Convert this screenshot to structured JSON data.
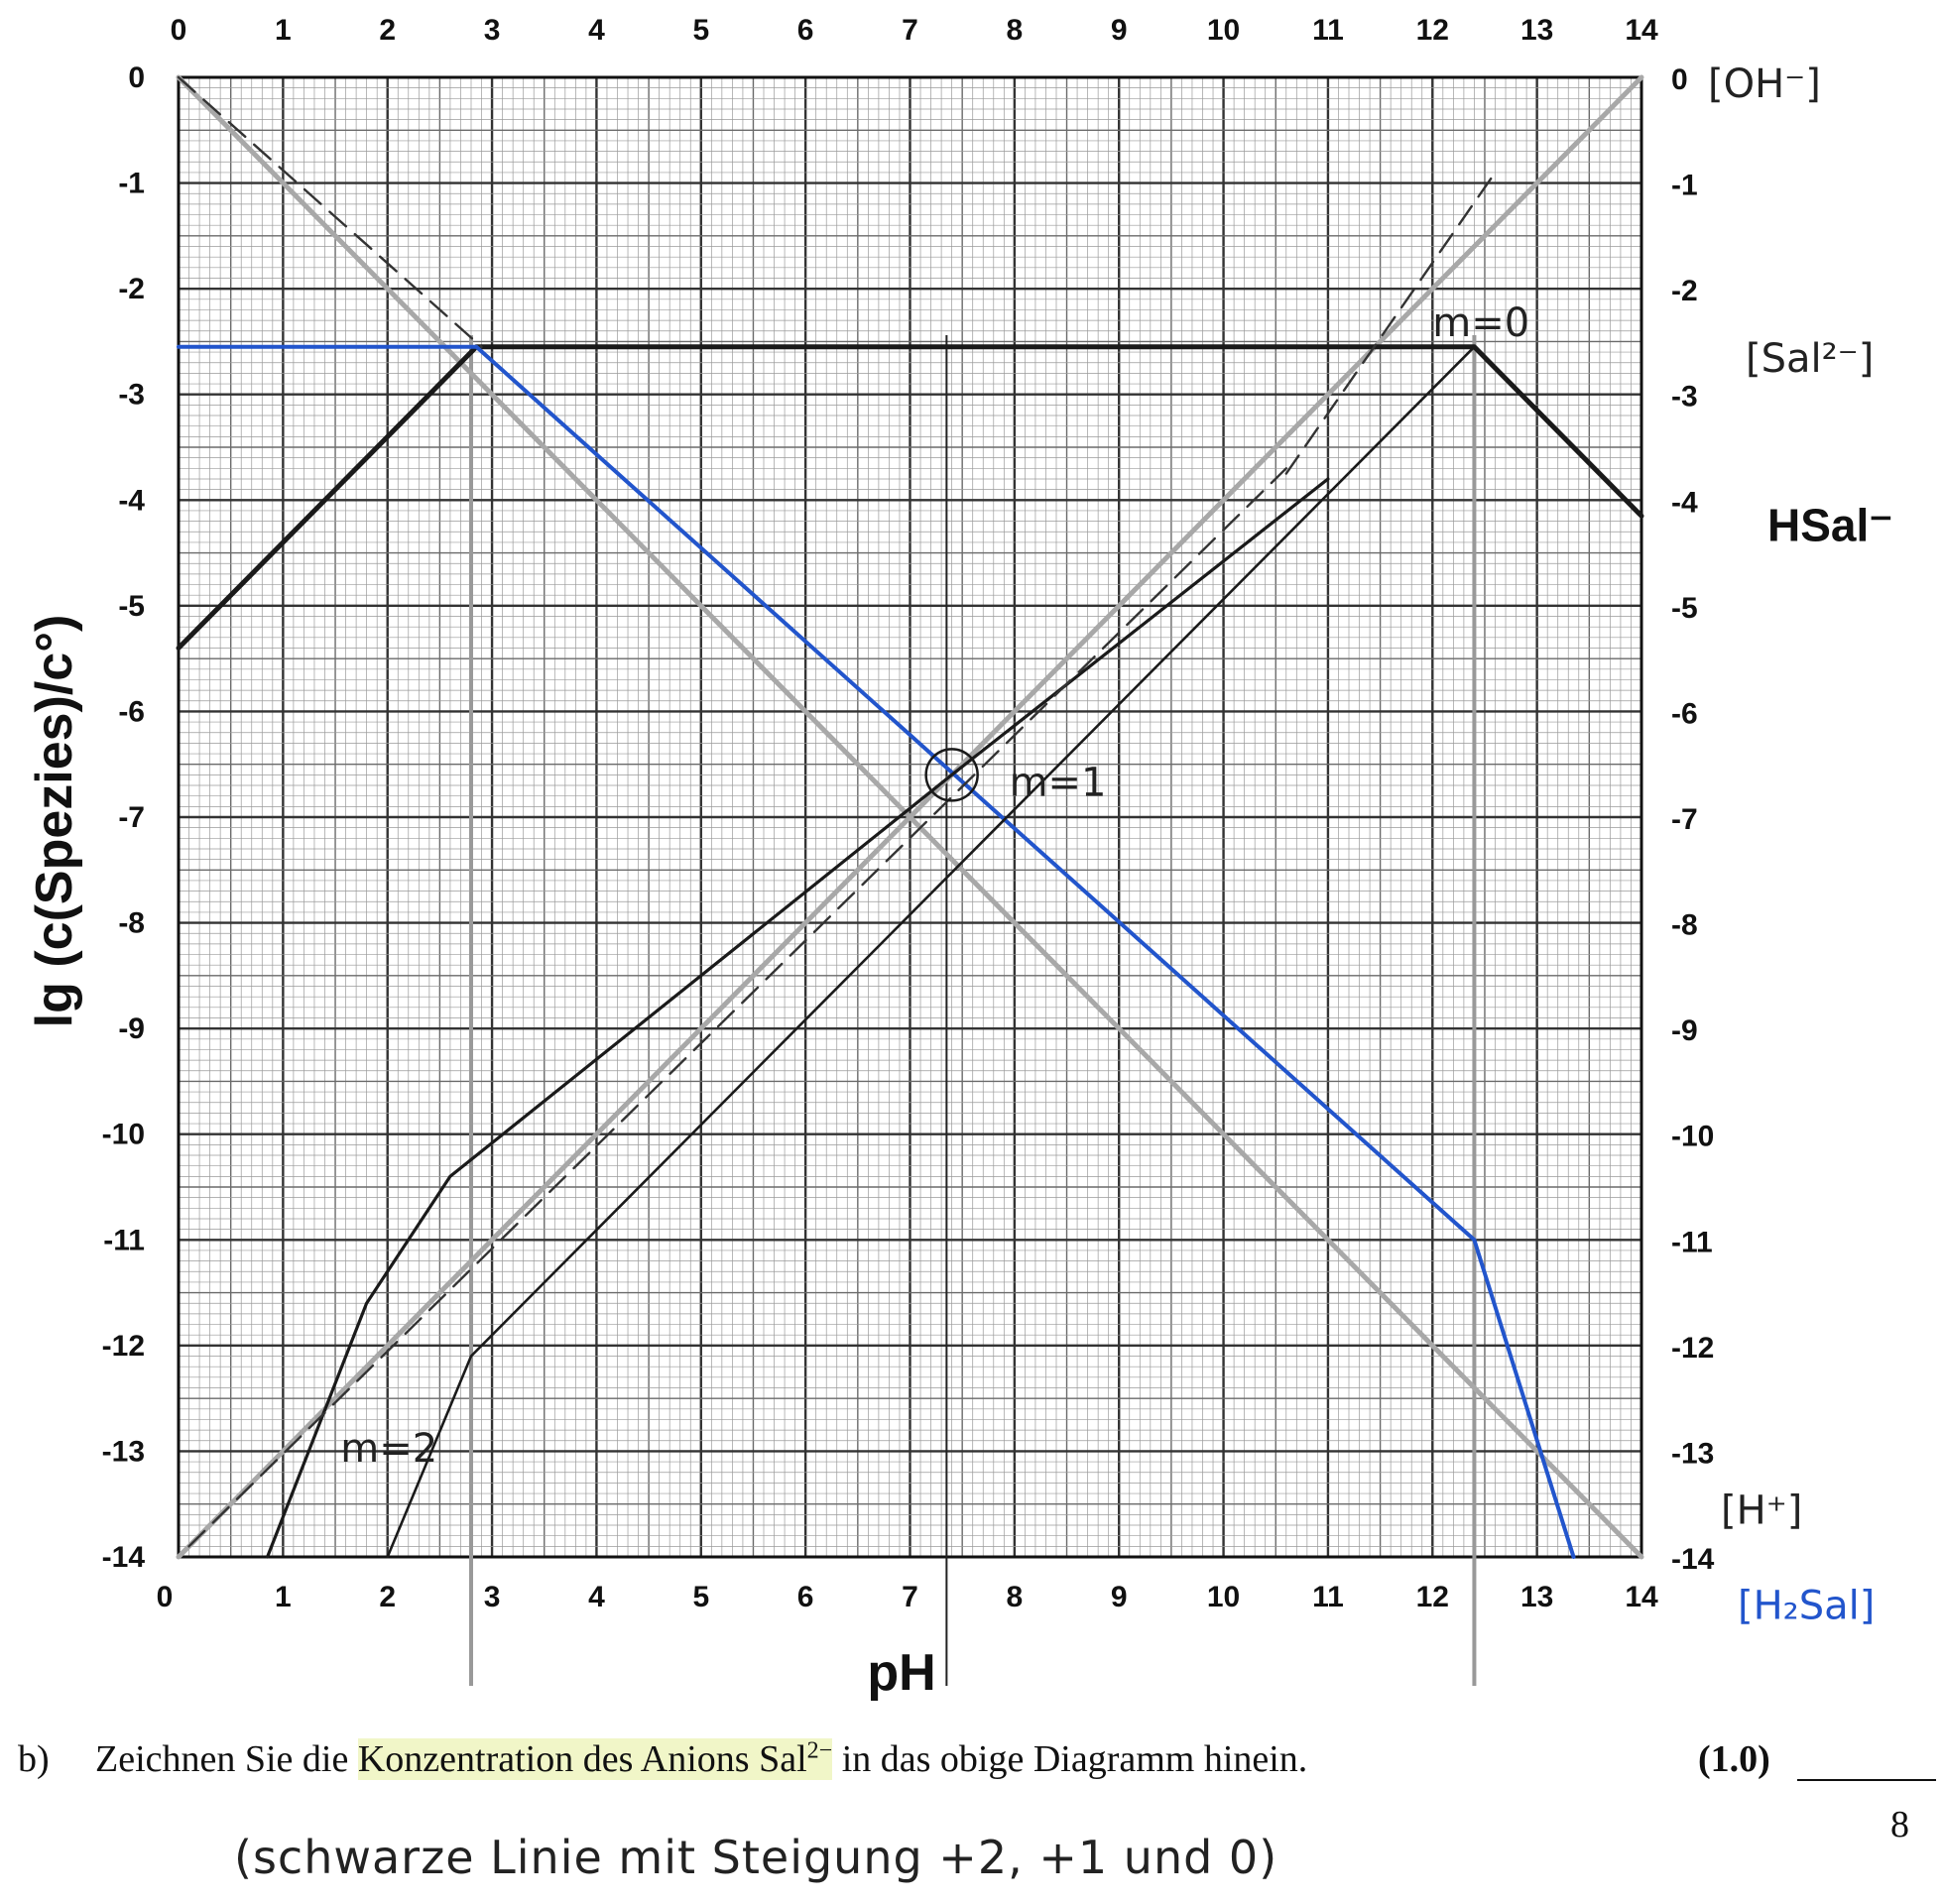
{
  "chart_data": {
    "type": "line",
    "xlabel": "pH",
    "ylabel": "lg (c(Spezies)/c°)",
    "xlim": [
      0,
      14
    ],
    "ylim": [
      -14,
      0
    ],
    "x_ticks": [
      "0",
      "1",
      "2",
      "3",
      "4",
      "5",
      "6",
      "7",
      "8",
      "9",
      "10",
      "11",
      "12",
      "13",
      "14"
    ],
    "y_ticks": [
      "0",
      "-1",
      "-2",
      "-3",
      "-4",
      "-5",
      "-6",
      "-7",
      "-8",
      "-9",
      "-10",
      "-11",
      "-12",
      "-13",
      "-14"
    ],
    "grid": true,
    "series": [
      {
        "name": "[H⁺]",
        "style": "grey",
        "points": [
          [
            0,
            0
          ],
          [
            14,
            -14
          ]
        ]
      },
      {
        "name": "[OH⁻]",
        "style": "grey",
        "points": [
          [
            0,
            -14
          ],
          [
            14,
            0
          ]
        ]
      },
      {
        "name": "[Sal²⁻]",
        "style": "black",
        "points": [
          [
            0,
            -5.4
          ],
          [
            2.85,
            -2.55
          ],
          [
            12.4,
            -2.55
          ],
          [
            14,
            -4.15
          ]
        ]
      },
      {
        "name": "[H₂Sal]",
        "style": "blue",
        "points": [
          [
            0,
            -2.55
          ],
          [
            2.85,
            -2.55
          ],
          [
            12.4,
            -11.0
          ],
          [
            13.35,
            -14
          ]
        ]
      },
      {
        "name": "HSal⁻",
        "style": "black-thin",
        "points": [
          [
            2,
            -14
          ],
          [
            2.8,
            -12.1
          ],
          [
            12.4,
            -2.55
          ]
        ]
      },
      {
        "name": "",
        "style": "black-hand",
        "points": [
          [
            0.85,
            -14
          ],
          [
            1.8,
            -11.6
          ],
          [
            2.6,
            -10.4
          ],
          [
            7.4,
            -6.6
          ],
          [
            11,
            -3.8
          ]
        ]
      },
      {
        "name": "",
        "style": "dashed",
        "points": [
          [
            0.1,
            -13.9
          ],
          [
            10.6,
            -3.7
          ]
        ]
      },
      {
        "name": "",
        "style": "dashed",
        "points": [
          [
            0,
            0
          ],
          [
            2.9,
            -2.55
          ]
        ]
      },
      {
        "name": "",
        "style": "dashed",
        "points": [
          [
            10.6,
            -3.75
          ],
          [
            12.6,
            -0.9
          ]
        ]
      }
    ],
    "vertical_guides": [
      2.8,
      7.35,
      12.4
    ],
    "intersection_marker": [
      7.4,
      -6.6
    ],
    "annotations": [
      {
        "text": "m=0",
        "x": 12.0,
        "y": -2.45
      },
      {
        "text": "m=1",
        "x": 7.95,
        "y": -6.8
      },
      {
        "text": "m=2",
        "x": 1.55,
        "y": -13.1
      }
    ],
    "right_labels": [
      {
        "text": "0",
        "y": 0
      },
      {
        "text": "-1",
        "y": -1
      },
      {
        "text": "-2",
        "y": -2
      },
      {
        "text": "-3",
        "y": -3
      },
      {
        "text": "-4",
        "y": -4
      },
      {
        "text": "-5",
        "y": -5
      },
      {
        "text": "-6",
        "y": -6
      },
      {
        "text": "-7",
        "y": -7
      },
      {
        "text": "-8",
        "y": -8
      },
      {
        "text": "-9",
        "y": -9
      },
      {
        "text": "-10",
        "y": -10
      },
      {
        "text": "-11",
        "y": -11
      },
      {
        "text": "-12",
        "y": -12
      },
      {
        "text": "-13",
        "y": -13
      },
      {
        "text": "-14",
        "y": -14
      }
    ],
    "species_labels": [
      {
        "text": "[OH⁻]",
        "style": "hand",
        "y": 0
      },
      {
        "text": "[Sal²⁻]",
        "style": "hand",
        "y": -2.6
      },
      {
        "text": "HSal⁻",
        "style": "bold",
        "y": -4.2
      },
      {
        "text": "[H⁺]",
        "style": "hand",
        "y": -13.5
      },
      {
        "text": "[H₂Sal]",
        "style": "hand-blue",
        "y": -14.4
      }
    ]
  },
  "task": {
    "letter": "b)",
    "text_before": "Zeichnen Sie die ",
    "text_highlight": "Konzentration des Anions Sal",
    "sup": "2−",
    "text_after": " in das obige Diagramm hinein.",
    "points": "(1.0)"
  },
  "page_number": "8",
  "answer_note": "(schwarze Linie mit Steigung +2, +1 und 0)",
  "colors": {
    "blue": "#2255cc",
    "grid_major": "#333333",
    "grid_minor": "#9a9a9a",
    "grey_line": "#a8a8a8"
  }
}
